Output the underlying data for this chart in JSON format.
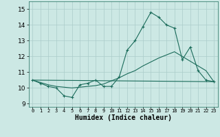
{
  "xlabel": "Humidex (Indice chaleur)",
  "bg_color": "#cce8e4",
  "grid_color": "#aaccca",
  "line_color": "#1a6b5a",
  "xlim": [
    -0.5,
    23.5
  ],
  "ylim": [
    8.8,
    15.5
  ],
  "yticks": [
    9,
    10,
    11,
    12,
    13,
    14,
    15
  ],
  "xticks": [
    0,
    1,
    2,
    3,
    4,
    5,
    6,
    7,
    8,
    9,
    10,
    11,
    12,
    13,
    14,
    15,
    16,
    17,
    18,
    19,
    20,
    21,
    22,
    23
  ],
  "series1_x": [
    0,
    1,
    2,
    3,
    4,
    5,
    6,
    7,
    8,
    9,
    10,
    11,
    12,
    13,
    14,
    15,
    16,
    17,
    18,
    19,
    20,
    21,
    22,
    23
  ],
  "series1_y": [
    10.5,
    10.3,
    10.1,
    10.0,
    9.5,
    9.4,
    10.2,
    10.3,
    10.5,
    10.1,
    10.1,
    10.7,
    12.4,
    13.0,
    13.9,
    14.8,
    14.5,
    14.0,
    13.8,
    11.8,
    12.6,
    11.1,
    10.5,
    10.4
  ],
  "series2_x": [
    0,
    1,
    2,
    3,
    4,
    5,
    6,
    7,
    8,
    9,
    10,
    11,
    12,
    13,
    14,
    15,
    16,
    17,
    18,
    19,
    20,
    21,
    22,
    23
  ],
  "series2_y": [
    10.5,
    10.35,
    10.2,
    10.1,
    10.05,
    10.0,
    10.05,
    10.1,
    10.15,
    10.25,
    10.45,
    10.65,
    10.9,
    11.1,
    11.4,
    11.65,
    11.9,
    12.1,
    12.3,
    12.0,
    11.7,
    11.4,
    11.1,
    10.4
  ],
  "series3_x": [
    0,
    23
  ],
  "series3_y": [
    10.5,
    10.4
  ]
}
